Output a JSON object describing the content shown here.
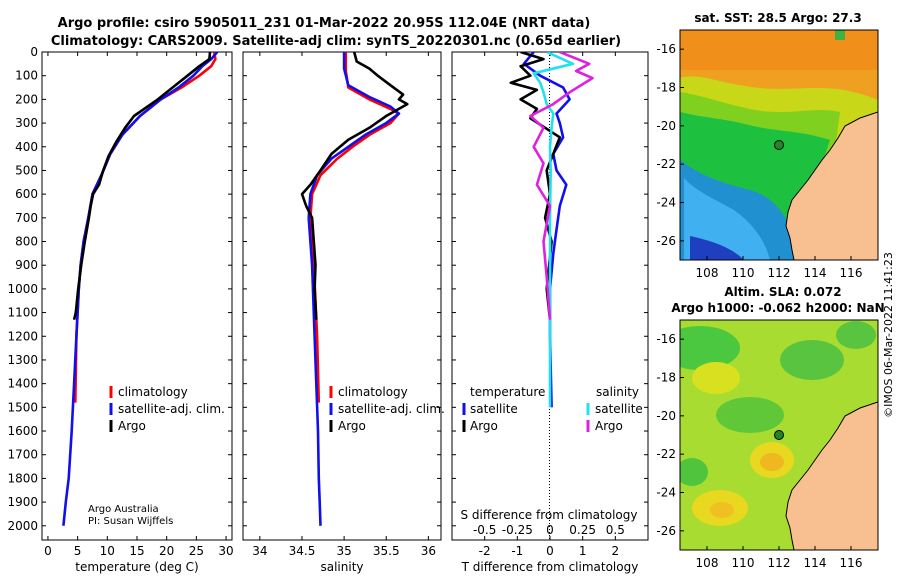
{
  "header": {
    "line1": "Argo profile: csiro 5905011_231 01-Mar-2022 20.95S 112.04E (NRT data)",
    "line2": "Climatology: CARS2009. Satellite-adj clim: synTS_20220301.nc (0.65d earlier)"
  },
  "credits": {
    "line1": "Argo Australia",
    "line2": "PI: Susan Wijffels"
  },
  "timestamp": "©IMOS 06-Mar-2022 11:41:23",
  "colors": {
    "climatology": "#ff0000",
    "satellite": "#1010ee",
    "argo": "#000000",
    "satellite_s": "#22e0f0",
    "argo_s": "#e020e0"
  },
  "chart_data": [
    {
      "type": "line",
      "name": "temperature",
      "xlabel": "temperature (deg C)",
      "ylabel": "",
      "xlim": [
        -1,
        31
      ],
      "ylim": [
        0,
        2060
      ],
      "y_reversed": true,
      "xticks": [
        0,
        5,
        10,
        15,
        20,
        25,
        30
      ],
      "xtick_labels": [
        "0",
        "5",
        "10",
        "15",
        "20",
        "25",
        "30"
      ],
      "yticks": [
        0,
        100,
        200,
        300,
        400,
        500,
        600,
        700,
        800,
        900,
        1000,
        1100,
        1200,
        1300,
        1400,
        1500,
        1600,
        1700,
        1800,
        1900,
        2000
      ],
      "legend": {
        "placement": "lower-center",
        "entries": [
          "climatology",
          "satellite-adj. clim.",
          "Argo"
        ]
      },
      "series": [
        {
          "name": "climatology",
          "color": "#ff0000",
          "x": [
            28,
            28.2,
            27.5,
            25.5,
            22.5,
            19,
            15.5,
            12.5,
            10.5,
            9,
            7.5,
            6.8,
            6,
            5.5,
            5.2,
            4.8,
            4.6
          ],
          "y": [
            0,
            30,
            60,
            100,
            150,
            200,
            270,
            350,
            430,
            520,
            600,
            700,
            800,
            900,
            1000,
            1200,
            1480
          ]
        },
        {
          "name": "satellite-adj. clim.",
          "color": "#1010ee",
          "x": [
            28.5,
            27.5,
            26,
            24.5,
            22,
            19,
            15.5,
            12.5,
            10.5,
            9,
            7.5,
            6.8,
            6,
            5.5,
            5.2,
            4.8,
            4.4,
            4,
            3.5,
            3,
            2.6
          ],
          "y": [
            0,
            30,
            60,
            100,
            150,
            200,
            270,
            350,
            430,
            520,
            600,
            700,
            800,
            900,
            1000,
            1200,
            1400,
            1600,
            1800,
            1900,
            2000
          ]
        },
        {
          "name": "Argo",
          "color": "#000000",
          "x": [
            27.3,
            27.2,
            25.5,
            23.5,
            21,
            18.5,
            14.5,
            13,
            11.5,
            10.2,
            9.3,
            8.6,
            7.6,
            7.2,
            6.9,
            6.2,
            5.6,
            5.1,
            4.7,
            4.4
          ],
          "y": [
            0,
            30,
            60,
            100,
            150,
            200,
            270,
            320,
            380,
            440,
            500,
            560,
            600,
            650,
            700,
            800,
            900,
            1000,
            1100,
            1130
          ]
        }
      ]
    },
    {
      "type": "line",
      "name": "salinity",
      "xlabel": "salinity",
      "ylabel": "",
      "xlim": [
        33.8,
        36.15
      ],
      "ylim": [
        0,
        2060
      ],
      "y_reversed": true,
      "xticks": [
        34,
        34.5,
        35,
        35.5,
        36
      ],
      "xtick_labels": [
        "34",
        "34.5",
        "35",
        "35.5",
        "36"
      ],
      "legend": {
        "placement": "lower-right",
        "entries": [
          "climatology",
          "satellite-adj. clim.",
          "Argo"
        ]
      },
      "series": [
        {
          "name": "climatology",
          "color": "#ff0000",
          "x": [
            35.02,
            35.02,
            35.05,
            35.3,
            35.55,
            35.65,
            35.55,
            35.3,
            35.1,
            34.92,
            34.72,
            34.62,
            34.6,
            34.62,
            34.64,
            34.68,
            34.7
          ],
          "y": [
            0,
            80,
            150,
            200,
            240,
            260,
            300,
            350,
            400,
            450,
            520,
            600,
            700,
            800,
            900,
            1200,
            1480
          ]
        },
        {
          "name": "satellite-adj. clim.",
          "color": "#1010ee",
          "x": [
            35.0,
            35.0,
            35.05,
            35.3,
            35.55,
            35.65,
            35.5,
            35.25,
            35.05,
            34.85,
            34.68,
            34.6,
            34.58,
            34.6,
            34.62,
            34.65,
            34.67,
            34.69,
            34.7,
            34.71,
            34.72
          ],
          "y": [
            0,
            70,
            140,
            190,
            230,
            260,
            300,
            350,
            400,
            450,
            520,
            600,
            700,
            800,
            900,
            1200,
            1400,
            1600,
            1800,
            1900,
            2000
          ]
        },
        {
          "name": "Argo",
          "color": "#000000",
          "x": [
            35.12,
            35.15,
            35.3,
            35.4,
            35.55,
            35.7,
            35.65,
            35.75,
            35.5,
            35.3,
            35.05,
            34.85,
            34.72,
            34.6,
            34.5,
            34.55,
            34.62,
            34.64,
            34.66,
            34.65,
            34.67
          ],
          "y": [
            0,
            40,
            70,
            100,
            140,
            180,
            200,
            220,
            270,
            320,
            370,
            430,
            500,
            560,
            600,
            650,
            700,
            800,
            900,
            1000,
            1130
          ]
        }
      ]
    },
    {
      "type": "line",
      "name": "difference from climatology",
      "xlabel": "T difference from climatology",
      "xlabel_top": "S difference from climatology",
      "xlim": [
        -3,
        3
      ],
      "ylim": [
        0,
        2060
      ],
      "y_reversed": true,
      "xticks": [
        -2,
        -1,
        0,
        1,
        2
      ],
      "xtick_labels": [
        "-2",
        "-1",
        "0",
        "1",
        "2"
      ],
      "sticks": [
        -2,
        -1,
        0,
        1,
        2
      ],
      "stick_labels": [
        "-0.5",
        "-0.25",
        "0",
        "0.25",
        "0.5"
      ],
      "legend_left": {
        "title": "temperature",
        "entries": [
          "satellite",
          "Argo"
        ]
      },
      "legend_right": {
        "title": "salinity",
        "entries": [
          "satellite",
          "Argo"
        ]
      },
      "series": [
        {
          "name": "T satellite",
          "color": "#1010ee",
          "x": [
            -0.5,
            -0.8,
            -0.3,
            0.4,
            0.6,
            0.2,
            0.3,
            0.4,
            0.1,
            0.2,
            0.5,
            0.3,
            0.2,
            0.1,
            0.0,
            0.0,
            0.05
          ],
          "y": [
            0,
            50,
            100,
            150,
            200,
            260,
            300,
            360,
            430,
            500,
            560,
            650,
            750,
            850,
            1000,
            1200,
            1500
          ]
        },
        {
          "name": "T Argo",
          "color": "#000000",
          "x": [
            -0.9,
            -0.2,
            -0.9,
            -0.6,
            -1.2,
            -0.4,
            -0.9,
            -0.4,
            -0.6,
            0.3,
            0.1,
            -0.1,
            0.0,
            -0.15,
            0.05,
            -0.1,
            0.0
          ],
          "y": [
            0,
            30,
            60,
            100,
            130,
            160,
            200,
            240,
            280,
            360,
            430,
            500,
            600,
            700,
            800,
            1000,
            1130
          ]
        },
        {
          "name": "S satellite",
          "color": "#22e0f0",
          "x": [
            -0.1,
            0.7,
            -0.5,
            -0.3,
            -0.2,
            -0.1,
            0.1,
            0.05,
            0.0,
            0.02,
            0.0,
            0.0,
            0.0
          ],
          "y": [
            0,
            50,
            90,
            130,
            170,
            220,
            260,
            320,
            400,
            500,
            700,
            1000,
            1500
          ]
        },
        {
          "name": "S Argo",
          "color": "#e020e0",
          "x": [
            0.3,
            1.2,
            0.8,
            1.3,
            0.6,
            0.1,
            -0.6,
            -0.2,
            -0.5,
            -0.2,
            -0.4,
            0.0,
            -0.2,
            -0.1,
            0.0
          ],
          "y": [
            0,
            50,
            80,
            110,
            170,
            220,
            270,
            320,
            400,
            470,
            560,
            650,
            800,
            950,
            1130
          ]
        }
      ]
    }
  ],
  "maps": [
    {
      "id": "sst",
      "title": "sat. SST: 28.5 Argo: 27.3",
      "title2": "",
      "lon_ticks": [
        108,
        110,
        112,
        114,
        116
      ],
      "lat_ticks": [
        -16,
        -18,
        -20,
        -22,
        -24,
        -26
      ],
      "lon_labels": [
        "108",
        "110",
        "112",
        "114",
        "116"
      ],
      "lat_labels": [
        "-16",
        "-18",
        "-20",
        "-22",
        "-24",
        "-26"
      ],
      "extent": {
        "lon": [
          106.5,
          117.5
        ],
        "lat": [
          -27,
          -15
        ]
      },
      "argo_position": {
        "lon": 112.04,
        "lat": -20.95
      }
    },
    {
      "id": "sla",
      "title": "Altim. SLA: 0.072",
      "title2": "Argo h1000: -0.062 h2000: NaN",
      "lon_ticks": [
        108,
        110,
        112,
        114,
        116
      ],
      "lat_ticks": [
        -16,
        -18,
        -20,
        -22,
        -24,
        -26
      ],
      "lon_labels": [
        "108",
        "110",
        "112",
        "114",
        "116"
      ],
      "lat_labels": [
        "-16",
        "-18",
        "-20",
        "-22",
        "-24",
        "-26"
      ],
      "extent": {
        "lon": [
          106.5,
          117.5
        ],
        "lat": [
          -27,
          -15
        ]
      },
      "argo_position": {
        "lon": 112.04,
        "lat": -20.95
      }
    }
  ]
}
